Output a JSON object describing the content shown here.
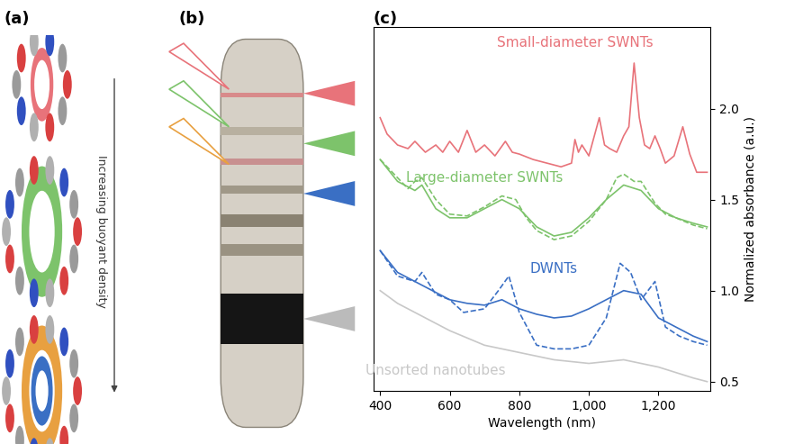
{
  "chart_data": {
    "type": "line",
    "x_label": "Wavelength (nm)",
    "y_label": "Normalized absorbance (a.u.)",
    "xlim": [
      380,
      1350
    ],
    "ylim": [
      0.45,
      2.45
    ],
    "xticks": [
      400,
      600,
      800,
      {
        "value": 1000,
        "label": "1,000"
      },
      {
        "value": 1200,
        "label": "1,200"
      }
    ],
    "yticks": [
      0.5,
      1.0,
      1.5,
      2.0
    ],
    "series": [
      {
        "name": "Small-diameter SWNTs",
        "color": "#e8737a",
        "line_style": "solid",
        "x": [
          400,
          420,
          450,
          480,
          500,
          530,
          560,
          580,
          600,
          625,
          650,
          675,
          700,
          730,
          760,
          780,
          800,
          840,
          880,
          920,
          950,
          960,
          970,
          980,
          1000,
          1030,
          1045,
          1060,
          1080,
          1100,
          1115,
          1130,
          1145,
          1160,
          1175,
          1190,
          1205,
          1220,
          1245,
          1270,
          1290,
          1310,
          1340
        ],
        "values": [
          1.95,
          1.86,
          1.8,
          1.78,
          1.82,
          1.76,
          1.8,
          1.76,
          1.82,
          1.76,
          1.88,
          1.76,
          1.8,
          1.74,
          1.82,
          1.76,
          1.75,
          1.72,
          1.7,
          1.68,
          1.7,
          1.83,
          1.76,
          1.8,
          1.74,
          1.95,
          1.8,
          1.78,
          1.76,
          1.85,
          1.9,
          2.25,
          1.95,
          1.8,
          1.78,
          1.85,
          1.78,
          1.7,
          1.74,
          1.9,
          1.75,
          1.65,
          1.65
        ]
      },
      {
        "name": "Large-diameter SWNTs",
        "color": "#7dc36b",
        "line_style": "solid",
        "x": [
          400,
          450,
          500,
          520,
          560,
          600,
          650,
          700,
          750,
          800,
          850,
          900,
          950,
          1000,
          1050,
          1100,
          1150,
          1200,
          1250,
          1300,
          1340
        ],
        "values": [
          1.72,
          1.6,
          1.55,
          1.58,
          1.45,
          1.4,
          1.4,
          1.45,
          1.5,
          1.45,
          1.35,
          1.3,
          1.32,
          1.4,
          1.5,
          1.58,
          1.55,
          1.45,
          1.4,
          1.37,
          1.35
        ]
      },
      {
        "color": "#7dc36b",
        "line_style": "dashed",
        "x": [
          400,
          450,
          480,
          500,
          520,
          560,
          600,
          650,
          700,
          750,
          790,
          820,
          850,
          900,
          950,
          1000,
          1050,
          1080,
          1100,
          1130,
          1150,
          1190,
          1220,
          1250,
          1300,
          1340
        ],
        "values": [
          1.72,
          1.62,
          1.56,
          1.6,
          1.62,
          1.5,
          1.42,
          1.41,
          1.46,
          1.52,
          1.5,
          1.4,
          1.33,
          1.28,
          1.3,
          1.38,
          1.5,
          1.62,
          1.64,
          1.6,
          1.6,
          1.48,
          1.42,
          1.4,
          1.36,
          1.34
        ]
      },
      {
        "name": "DWNTs",
        "color": "#3a6fc4",
        "line_style": "solid",
        "x": [
          400,
          450,
          500,
          550,
          600,
          650,
          700,
          750,
          800,
          850,
          900,
          950,
          1000,
          1050,
          1100,
          1150,
          1200,
          1250,
          1300,
          1340
        ],
        "values": [
          1.22,
          1.1,
          1.05,
          1.0,
          0.95,
          0.93,
          0.92,
          0.95,
          0.9,
          0.87,
          0.85,
          0.86,
          0.9,
          0.95,
          1.0,
          0.98,
          0.85,
          0.8,
          0.75,
          0.72
        ]
      },
      {
        "color": "#3a6fc4",
        "line_style": "dashed",
        "x": [
          400,
          450,
          500,
          520,
          560,
          600,
          640,
          700,
          740,
          770,
          800,
          850,
          900,
          950,
          1000,
          1050,
          1090,
          1120,
          1150,
          1190,
          1220,
          1260,
          1300,
          1340
        ],
        "values": [
          1.22,
          1.08,
          1.05,
          1.1,
          0.98,
          0.95,
          0.88,
          0.9,
          1.0,
          1.08,
          0.88,
          0.7,
          0.68,
          0.68,
          0.7,
          0.85,
          1.15,
          1.1,
          0.95,
          1.05,
          0.8,
          0.75,
          0.72,
          0.7
        ]
      },
      {
        "name": "Unsorted nanotubes",
        "color": "#c8c8c8",
        "line_style": "solid",
        "x": [
          400,
          450,
          500,
          550,
          600,
          650,
          700,
          750,
          800,
          850,
          900,
          950,
          1000,
          1050,
          1100,
          1150,
          1200,
          1250,
          1300,
          1340
        ],
        "values": [
          1.0,
          0.93,
          0.88,
          0.83,
          0.78,
          0.74,
          0.7,
          0.68,
          0.66,
          0.64,
          0.62,
          0.61,
          0.6,
          0.61,
          0.62,
          0.6,
          0.58,
          0.55,
          0.52,
          0.5
        ]
      }
    ]
  },
  "panel_labels": [
    "(a)",
    "(b)",
    "(c)"
  ],
  "annotations": [
    "Increasing buoyant density"
  ]
}
